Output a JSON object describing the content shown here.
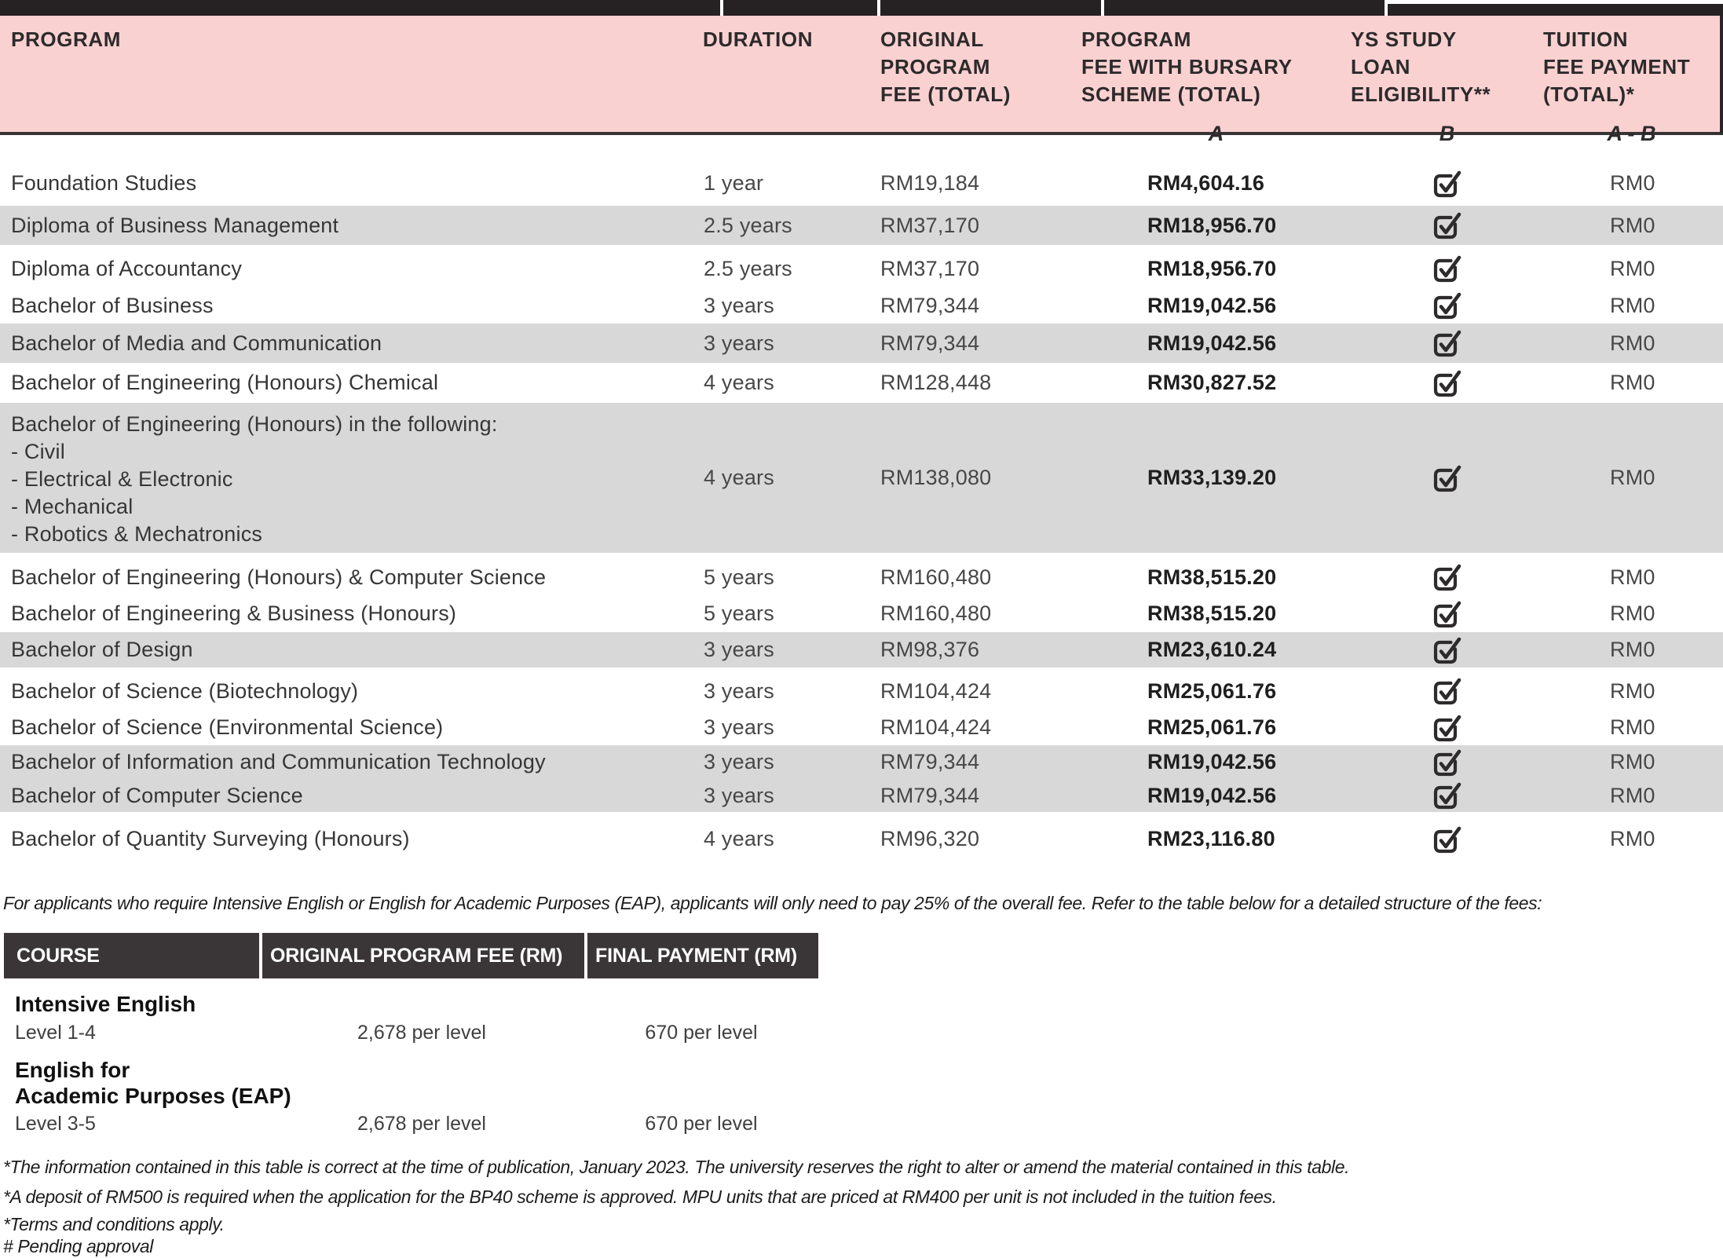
{
  "colors": {
    "header_pink": "#FAD1D1",
    "row_gray": "#D8D8D8",
    "dark_bar": "#262223",
    "table2_header_bg": "#3A3637",
    "checkbox": "#2e2b2c"
  },
  "main_table": {
    "columns": [
      {
        "label": "PROGRAM",
        "lines": [
          "PROGRAM"
        ]
      },
      {
        "label": "DURATION",
        "lines": [
          "DURATION"
        ]
      },
      {
        "label": "ORIGINAL PROGRAM FEE (TOTAL)",
        "lines": [
          "ORIGINAL",
          "PROGRAM",
          "FEE (TOTAL)"
        ]
      },
      {
        "label": "PROGRAM FEE WITH BURSARY SCHEME (TOTAL)",
        "lines": [
          "PROGRAM",
          "FEE WITH BURSARY",
          "SCHEME (TOTAL)"
        ],
        "formula": "A"
      },
      {
        "label": "YS STUDY LOAN ELIGIBILITY**",
        "lines": [
          "YS STUDY",
          "LOAN",
          "ELIGIBILITY**"
        ],
        "formula": "B"
      },
      {
        "label": "TUITION FEE PAYMENT (TOTAL)*",
        "lines": [
          "TUITION",
          "FEE PAYMENT",
          "(TOTAL)*"
        ],
        "formula": "A - B"
      }
    ],
    "rows": [
      {
        "program": "Foundation Studies",
        "duration": "1 year",
        "original_fee": "RM19,184",
        "bursary_fee": "RM4,604.16",
        "loan_eligible": true,
        "tuition_payment": "RM0",
        "shaded": false
      },
      {
        "program": "Diploma of Business Management",
        "duration": "2.5 years",
        "original_fee": "RM37,170",
        "bursary_fee": "RM18,956.70",
        "loan_eligible": true,
        "tuition_payment": "RM0",
        "shaded": true
      },
      {
        "program": "Diploma of Accountancy",
        "duration": "2.5 years",
        "original_fee": "RM37,170",
        "bursary_fee": "RM18,956.70",
        "loan_eligible": true,
        "tuition_payment": "RM0",
        "shaded": false
      },
      {
        "program": "Bachelor of Business",
        "duration": "3 years",
        "original_fee": "RM79,344",
        "bursary_fee": "RM19,042.56",
        "loan_eligible": true,
        "tuition_payment": "RM0",
        "shaded": false
      },
      {
        "program": "Bachelor of Media and Communication",
        "duration": "3 years",
        "original_fee": "RM79,344",
        "bursary_fee": "RM19,042.56",
        "loan_eligible": true,
        "tuition_payment": "RM0",
        "shaded": true
      },
      {
        "program": "Bachelor of Engineering (Honours) Chemical",
        "duration": "4 years",
        "original_fee": "RM128,448",
        "bursary_fee": "RM30,827.52",
        "loan_eligible": true,
        "tuition_payment": "RM0",
        "shaded": false
      },
      {
        "program": "Bachelor of Engineering (Honours) in the following: - Civil - Electrical & Electronic - Mechanical - Robotics & Mechatronics",
        "program_lines": [
          "Bachelor of Engineering (Honours) in the following:",
          "- Civil",
          "- Electrical & Electronic",
          "- Mechanical",
          "- Robotics & Mechatronics"
        ],
        "duration": "4 years",
        "original_fee": "RM138,080",
        "bursary_fee": "RM33,139.20",
        "loan_eligible": true,
        "tuition_payment": "RM0",
        "shaded": true
      },
      {
        "program": "Bachelor of Engineering (Honours) & Computer Science",
        "duration": "5 years",
        "original_fee": "RM160,480",
        "bursary_fee": "RM38,515.20",
        "loan_eligible": true,
        "tuition_payment": "RM0",
        "shaded": false
      },
      {
        "program": "Bachelor of Engineering & Business (Honours)",
        "duration": "5 years",
        "original_fee": "RM160,480",
        "bursary_fee": "RM38,515.20",
        "loan_eligible": true,
        "tuition_payment": "RM0",
        "shaded": false
      },
      {
        "program": "Bachelor of Design",
        "duration": "3 years",
        "original_fee": "RM98,376",
        "bursary_fee": "RM23,610.24",
        "loan_eligible": true,
        "tuition_payment": "RM0",
        "shaded": true
      },
      {
        "program": "Bachelor of Science (Biotechnology)",
        "duration": "3 years",
        "original_fee": "RM104,424",
        "bursary_fee": "RM25,061.76",
        "loan_eligible": true,
        "tuition_payment": "RM0",
        "shaded": false
      },
      {
        "program": "Bachelor of Science (Environmental Science)",
        "duration": "3 years",
        "original_fee": "RM104,424",
        "bursary_fee": "RM25,061.76",
        "loan_eligible": true,
        "tuition_payment": "RM0",
        "shaded": false
      },
      {
        "program": "Bachelor of Information and Communication Technology",
        "duration": "3 years",
        "original_fee": "RM79,344",
        "bursary_fee": "RM19,042.56",
        "loan_eligible": true,
        "tuition_payment": "RM0",
        "shaded": true
      },
      {
        "program": "Bachelor of Computer Science",
        "duration": "3 years",
        "original_fee": "RM79,344",
        "bursary_fee": "RM19,042.56",
        "loan_eligible": true,
        "tuition_payment": "RM0",
        "shaded": true
      },
      {
        "program": "Bachelor of Quantity Surveying (Honours)",
        "duration": "4 years",
        "original_fee": "RM96,320",
        "bursary_fee": "RM23,116.80",
        "loan_eligible": true,
        "tuition_payment": "RM0",
        "shaded": false
      }
    ]
  },
  "note": "For applicants who require Intensive English or English for Academic Purposes (EAP), applicants will only need to pay 25% of the overall fee. Refer to the table below for a detailed structure of the fees:",
  "english_table": {
    "headers": [
      "COURSE",
      "ORIGINAL PROGRAM FEE (RM)",
      "FINAL PAYMENT (RM)"
    ],
    "rows": [
      {
        "course_lines": [
          "Intensive English"
        ],
        "level": "Level 1-4",
        "original_fee": "2,678 per level",
        "final_payment": "670 per level"
      },
      {
        "course_lines": [
          "English for",
          "Academic Purposes (EAP)"
        ],
        "level": "Level 3-5",
        "original_fee": "2,678 per level",
        "final_payment": "670 per level"
      }
    ]
  },
  "footnotes": [
    "*The information contained in this table is correct at the time of publication, January 2023. The university reserves the right to alter or amend the material contained in this table.",
    "*A deposit of RM500 is required when the application for the BP40 scheme is approved. MPU units that are priced at RM400 per unit is not included in the tuition fees.",
    "*Terms and conditions apply.",
    "# Pending approval"
  ]
}
